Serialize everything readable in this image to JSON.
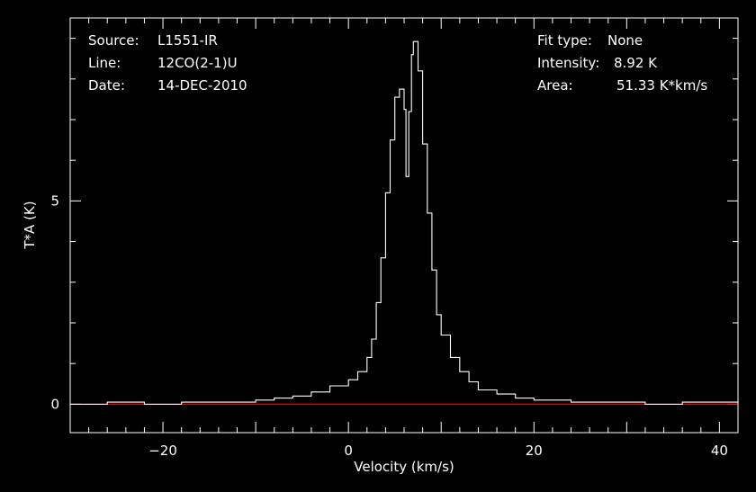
{
  "info": {
    "source_label": "Source:",
    "source_value": "L1551-IR",
    "line_label": "Line:",
    "line_value": "12CO(2-1)U",
    "date_label": "Date:",
    "date_value": "14-DEC-2010",
    "fit_label": "Fit type:",
    "fit_value": "None",
    "intensity_label": "Intensity:",
    "intensity_value": "8.92 K",
    "area_label": "Area:",
    "area_value": "51.33 K*km/s"
  },
  "chart_data": {
    "type": "line",
    "title": "",
    "xlabel": "Velocity (km/s)",
    "ylabel": "T*A (K)",
    "xlim": [
      -30,
      42
    ],
    "ylim": [
      -0.7,
      9.5
    ],
    "x_ticks": [
      -20,
      0,
      20,
      40
    ],
    "x_tick_labels": [
      "−20",
      "0",
      "20",
      "40"
    ],
    "y_ticks": [
      0,
      5
    ],
    "y_tick_labels": [
      "0",
      "5"
    ],
    "grid": false,
    "colors": {
      "spectrum": "#ffffff",
      "baseline": "#ff0000",
      "axes": "#ffffff",
      "background": "#000000"
    },
    "series": [
      {
        "x": [
          -30,
          -26,
          -22,
          -18,
          -14,
          -10,
          -8,
          -6,
          -4,
          -2,
          0,
          1,
          2,
          2.5,
          3,
          3.5,
          4,
          4.5,
          5,
          5.5,
          6,
          6.2,
          6.5,
          6.8,
          7,
          7.5,
          8,
          8.5,
          9,
          9.5,
          10,
          11,
          12,
          13,
          14,
          16,
          18,
          20,
          24,
          28,
          32,
          36,
          40,
          42
        ],
        "values": [
          0.0,
          0.05,
          0.0,
          0.05,
          0.05,
          0.1,
          0.15,
          0.2,
          0.3,
          0.45,
          0.6,
          0.8,
          1.15,
          1.6,
          2.5,
          3.6,
          5.2,
          6.5,
          7.55,
          7.75,
          7.25,
          5.6,
          7.2,
          8.6,
          8.92,
          8.2,
          6.4,
          4.7,
          3.3,
          2.2,
          1.7,
          1.15,
          0.8,
          0.55,
          0.35,
          0.25,
          0.15,
          0.1,
          0.05,
          0.05,
          0.0,
          0.05,
          0.05,
          0.0
        ]
      },
      {
        "x": [
          -30,
          42
        ],
        "values": [
          0,
          0
        ]
      }
    ]
  }
}
